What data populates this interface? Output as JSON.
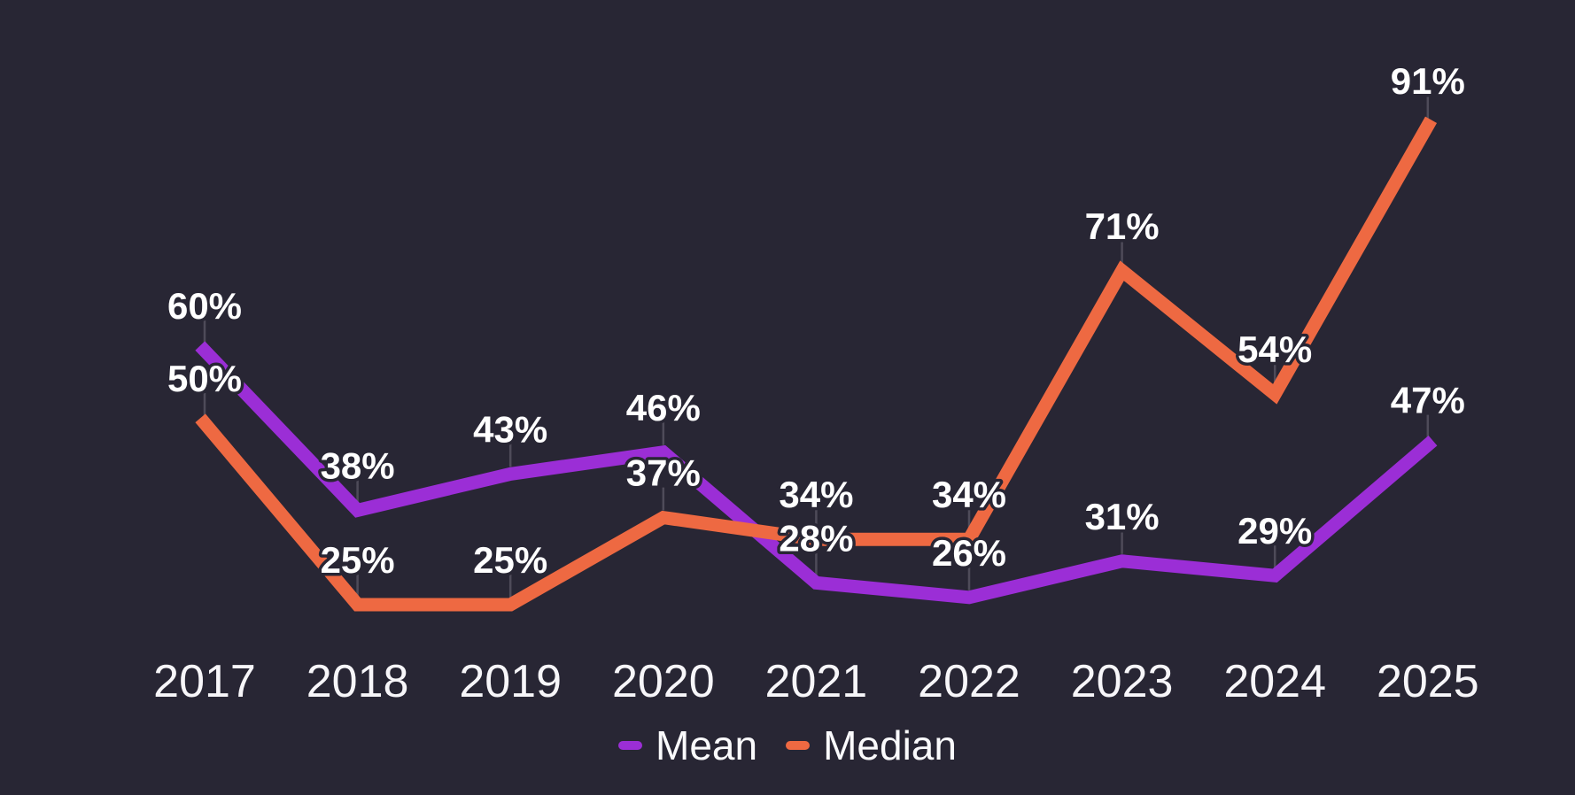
{
  "chart_data": {
    "type": "line",
    "title": "",
    "categories": [
      "2017",
      "2018",
      "2019",
      "2020",
      "2021",
      "2022",
      "2023",
      "2024",
      "2025"
    ],
    "series": [
      {
        "name": "Mean",
        "color": "#9b2ed6",
        "values": [
          60,
          38,
          43,
          46,
          28,
          26,
          31,
          29,
          47
        ]
      },
      {
        "name": "Median",
        "color": "#ee6942",
        "values": [
          50,
          25,
          25,
          37,
          34,
          34,
          71,
          54,
          91
        ]
      }
    ],
    "value_suffix": "%",
    "data_labels": true,
    "xlabel": "",
    "ylabel": "",
    "ylim": [
      0,
      100
    ],
    "grid": false,
    "legend_position": "bottom",
    "colors": {
      "background": "#282634",
      "data_label_text": "#ffffff",
      "axis_label_text": "#f7f6f9",
      "callout_line": "#4e4b59"
    }
  }
}
